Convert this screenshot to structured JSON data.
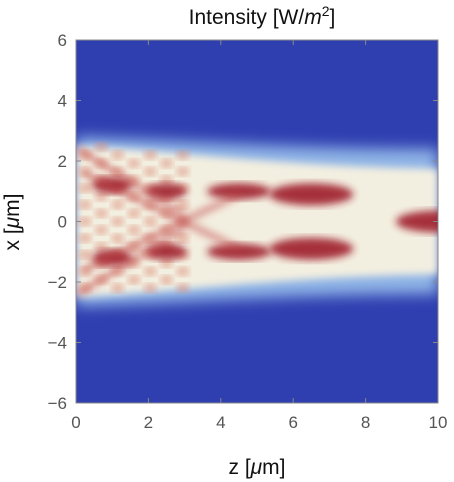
{
  "chart_data": {
    "type": "heatmap",
    "title": "Intensity [W/m²]",
    "title_parts": {
      "text": "Intensity [W/",
      "var": "m",
      "sup": "2",
      "close": "]"
    },
    "xlabel": "z [μm]",
    "ylabel": "x [μm]",
    "xlabel_parts": {
      "pre": "z [",
      "greek": "μ",
      "post": "m]"
    },
    "ylabel_parts": {
      "pre": "x [",
      "greek": "μ",
      "post": "m]"
    },
    "xlim": [
      0,
      10
    ],
    "ylim": [
      -6,
      6
    ],
    "x_ticks": [
      0,
      2,
      4,
      6,
      8,
      10
    ],
    "y_ticks": [
      -6,
      -4,
      -2,
      0,
      2,
      4,
      6
    ],
    "x_tick_labels": [
      "0",
      "2",
      "4",
      "6",
      "8",
      "10"
    ],
    "y_tick_labels": [
      "−6",
      "−4",
      "−2",
      "0",
      "2",
      "4",
      "6"
    ],
    "colormap": "blue-white-red",
    "colors": {
      "low": "#2f3fb0",
      "mid": "#f3efe0",
      "high": "#9e1a2a"
    },
    "aperture_half_width": 2.5,
    "hotspots": [
      {
        "z": 1.0,
        "x": 1.2
      },
      {
        "z": 1.0,
        "x": -1.2
      },
      {
        "z": 2.5,
        "x": 1.0
      },
      {
        "z": 2.5,
        "x": -1.0
      },
      {
        "z": 4.5,
        "x": 1.0
      },
      {
        "z": 4.5,
        "x": -1.0
      },
      {
        "z": 6.5,
        "x": 0.9
      },
      {
        "z": 6.5,
        "x": -0.9
      },
      {
        "z": 10.0,
        "x": 0.0
      }
    ],
    "grid": false
  }
}
